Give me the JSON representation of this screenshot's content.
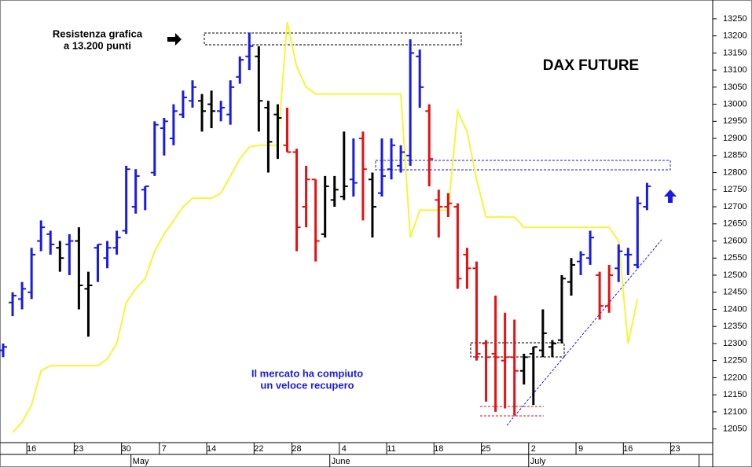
{
  "chart_data": {
    "type": "ohlc",
    "title": "DAX FUTURE",
    "annotations": [
      [
        "Resistenza grafica",
        "a 13.200 punti"
      ],
      [
        "Il mercato ha compiuto",
        "un veloce recupero"
      ]
    ],
    "categories": [
      null,
      null,
      null,
      "16",
      null,
      null,
      null,
      null,
      "23",
      null,
      null,
      null,
      null,
      "30",
      null,
      null,
      null,
      "7",
      null,
      null,
      null,
      null,
      "14",
      null,
      null,
      null,
      null,
      "22",
      null,
      null,
      null,
      "28",
      null,
      null,
      null,
      null,
      "4",
      null,
      null,
      null,
      null,
      "11",
      null,
      null,
      null,
      null,
      "18",
      null,
      null,
      null,
      null,
      "25",
      null,
      null,
      null,
      null,
      "2",
      null,
      null,
      null,
      null,
      "9",
      null,
      null,
      null,
      null,
      "16",
      null,
      null,
      null,
      null,
      "23",
      null,
      null,
      null
    ],
    "months": [
      null,
      null,
      null,
      null,
      null,
      null,
      null,
      null,
      null,
      null,
      null,
      null,
      null,
      null,
      "May",
      null,
      null,
      null,
      null,
      null,
      null,
      null,
      null,
      null,
      null,
      null,
      null,
      null,
      null,
      null,
      null,
      null,
      null,
      null,
      null,
      "June",
      null,
      null,
      null,
      null,
      null,
      null,
      null,
      null,
      null,
      null,
      null,
      null,
      null,
      null,
      null,
      null,
      null,
      null,
      null,
      null,
      "July",
      null,
      null,
      null,
      null,
      null,
      null,
      null,
      null,
      null,
      null,
      null,
      null,
      null,
      null,
      null,
      null,
      null
    ],
    "series": [
      {
        "type": "ohlc",
        "open": [
          12280,
          12420,
          12430,
          12450,
          12600,
          12620,
          12580,
          12590,
          12600,
          12460,
          12580,
          12550,
          12580,
          12630,
          12700,
          12750,
          12800,
          12930,
          12900,
          12970,
          13010,
          13010,
          13000,
          12980,
          12970,
          13080,
          13140,
          13140,
          12990,
          12970,
          12880,
          12860,
          12700,
          12780,
          12620,
          12720,
          12730,
          12780,
          12900,
          12780,
          12740,
          12810,
          12820,
          12850,
          13140,
          12980,
          12720,
          12700,
          12700,
          12560,
          12520,
          12300,
          12270,
          12250,
          12260,
          12220,
          12270,
          12280,
          12290,
          12310,
          12480,
          12540,
          12550,
          12500,
          12410,
          12520,
          12560,
          12530,
          12700,
          null,
          null,
          null,
          null,
          null,
          null
        ],
        "high": [
          12300,
          12450,
          12480,
          12580,
          12660,
          12630,
          12600,
          12620,
          12640,
          12510,
          12590,
          12600,
          12630,
          12820,
          12810,
          12760,
          12950,
          12960,
          13000,
          13040,
          13070,
          13030,
          13040,
          13010,
          13070,
          13140,
          13210,
          13170,
          13010,
          13000,
          12990,
          12870,
          12820,
          12780,
          12790,
          12790,
          12920,
          12900,
          12920,
          12800,
          12900,
          12900,
          12880,
          13190,
          13160,
          13000,
          12750,
          12740,
          12710,
          12580,
          12540,
          12310,
          12440,
          12390,
          12370,
          12270,
          12290,
          12400,
          12310,
          12500,
          12550,
          12570,
          12630,
          12510,
          12530,
          12590,
          12580,
          12730,
          12770,
          null,
          null,
          null,
          null,
          null,
          null
        ],
        "low": [
          12260,
          12380,
          12400,
          12430,
          12570,
          12560,
          12510,
          12500,
          12400,
          12320,
          12480,
          12520,
          12560,
          12620,
          12680,
          12690,
          12790,
          12850,
          12880,
          12960,
          12990,
          12920,
          12930,
          12950,
          12940,
          13060,
          13100,
          12920,
          12800,
          12840,
          12860,
          12570,
          12640,
          12540,
          12610,
          12700,
          12720,
          12730,
          12660,
          12610,
          12730,
          12780,
          12800,
          12820,
          12990,
          12760,
          12610,
          12670,
          12460,
          12460,
          12250,
          12130,
          12100,
          12110,
          12090,
          12180,
          12120,
          12260,
          12260,
          12300,
          12440,
          12500,
          12530,
          12370,
          12390,
          12480,
          12500,
          12520,
          12690,
          null,
          null,
          null,
          null,
          null,
          null
        ],
        "close": [
          12290,
          12440,
          12460,
          12560,
          12640,
          12590,
          12550,
          12600,
          12470,
          12470,
          12590,
          12580,
          12610,
          12810,
          12790,
          12760,
          12940,
          12950,
          12980,
          13020,
          13050,
          12980,
          12980,
          12990,
          13050,
          13130,
          13170,
          13010,
          12890,
          12960,
          12860,
          12640,
          12780,
          12600,
          12760,
          12750,
          12760,
          12770,
          12810,
          12700,
          12790,
          12880,
          12860,
          13150,
          13050,
          12840,
          12700,
          12710,
          12490,
          12520,
          12270,
          12260,
          12260,
          12260,
          12220,
          12260,
          12290,
          12330,
          12300,
          12490,
          12530,
          12560,
          12610,
          12410,
          12500,
          12570,
          12560,
          12710,
          12760,
          null,
          null,
          null,
          null,
          null,
          null
        ],
        "colors": [
          "#1a1ae6",
          "#1a1ae6",
          "#1a1ae6",
          "#1a1ae6",
          "#1a1ae6",
          "#1a1ae6",
          "#000000",
          "#1a1ae6",
          "#000000",
          "#000000",
          "#1a1ae6",
          "#1a1ae6",
          "#1a1ae6",
          "#1a1ae6",
          "#1a1ae6",
          "#1a1ae6",
          "#1a1ae6",
          "#1a1ae6",
          "#1a1ae6",
          "#1a1ae6",
          "#1a1ae6",
          "#000000",
          "#000000",
          "#1a1ae6",
          "#1a1ae6",
          "#1a1ae6",
          "#1a1ae6",
          "#000000",
          "#000000",
          "#000000",
          "#e81010",
          "#e81010",
          "#e81010",
          "#e81010",
          "#000000",
          "#000000",
          "#000000",
          "#1a1ae6",
          "#e81010",
          "#000000",
          "#1a1ae6",
          "#1a1ae6",
          "#1a1ae6",
          "#1a1ae6",
          "#1a1ae6",
          "#e81010",
          "#e81010",
          "#e81010",
          "#e81010",
          "#e81010",
          "#e81010",
          "#e81010",
          "#e81010",
          "#e81010",
          "#e81010",
          "#000000",
          "#000000",
          "#000000",
          "#000000",
          "#000000",
          "#000000",
          "#1a1ae6",
          "#1a1ae6",
          "#e81010",
          "#e81010",
          "#1a1ae6",
          "#1a1ae6",
          "#1a1ae6",
          "#1a1ae6",
          null,
          null,
          null,
          null,
          null,
          null
        ]
      },
      {
        "type": "line",
        "color": "#f5f53a",
        "values": [
          null,
          12040,
          12070,
          12120,
          12220,
          12235,
          12235,
          12235,
          12235,
          12235,
          12235,
          12255,
          12300,
          12420,
          12460,
          12490,
          12570,
          12620,
          12660,
          12700,
          12725,
          12725,
          12725,
          12740,
          12790,
          12840,
          12875,
          12880,
          12880,
          12880,
          13240,
          13110,
          13050,
          13030,
          13030,
          13030,
          13030,
          13030,
          13030,
          13030,
          13030,
          13030,
          13030,
          12610,
          12690,
          12690,
          12690,
          12690,
          12980,
          12920,
          12780,
          12670,
          12670,
          12670,
          12670,
          12640,
          12640,
          12640,
          12640,
          12640,
          12640,
          12640,
          12640,
          12640,
          12640,
          12600,
          12300,
          12430,
          null,
          null,
          null,
          null,
          null,
          null,
          null
        ]
      }
    ],
    "ylim": [
      12010,
      13305
    ],
    "yticks": [
      12050,
      12100,
      12150,
      12200,
      12250,
      12300,
      12350,
      12400,
      12450,
      12500,
      12550,
      12600,
      12650,
      12700,
      12750,
      12800,
      12850,
      12900,
      12950,
      13000,
      13050,
      13100,
      13150,
      13200,
      13250
    ],
    "grid": false
  }
}
